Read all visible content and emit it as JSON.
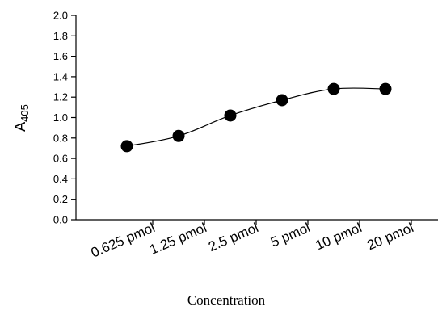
{
  "chart_data": {
    "type": "line",
    "categories": [
      "0.625 pmol",
      "1.25 pmol",
      "2.5 pmol",
      "5 pmol",
      "10 pmol",
      "20 pmol"
    ],
    "series": [
      {
        "values": [
          0.72,
          0.82,
          1.02,
          1.17,
          1.28,
          1.28
        ]
      }
    ],
    "xlabel": "Concentration",
    "ylabel": {
      "main": "A",
      "subscript": "405"
    },
    "ylim": [
      0.0,
      2.0
    ],
    "yticks": [
      "0.0",
      "0.2",
      "0.4",
      "0.6",
      "0.8",
      "1.0",
      "1.2",
      "1.4",
      "1.6",
      "1.8",
      "2.0"
    ],
    "grid": false,
    "marker": "filled-circle",
    "line_color": "#000000",
    "marker_color": "#000000"
  }
}
